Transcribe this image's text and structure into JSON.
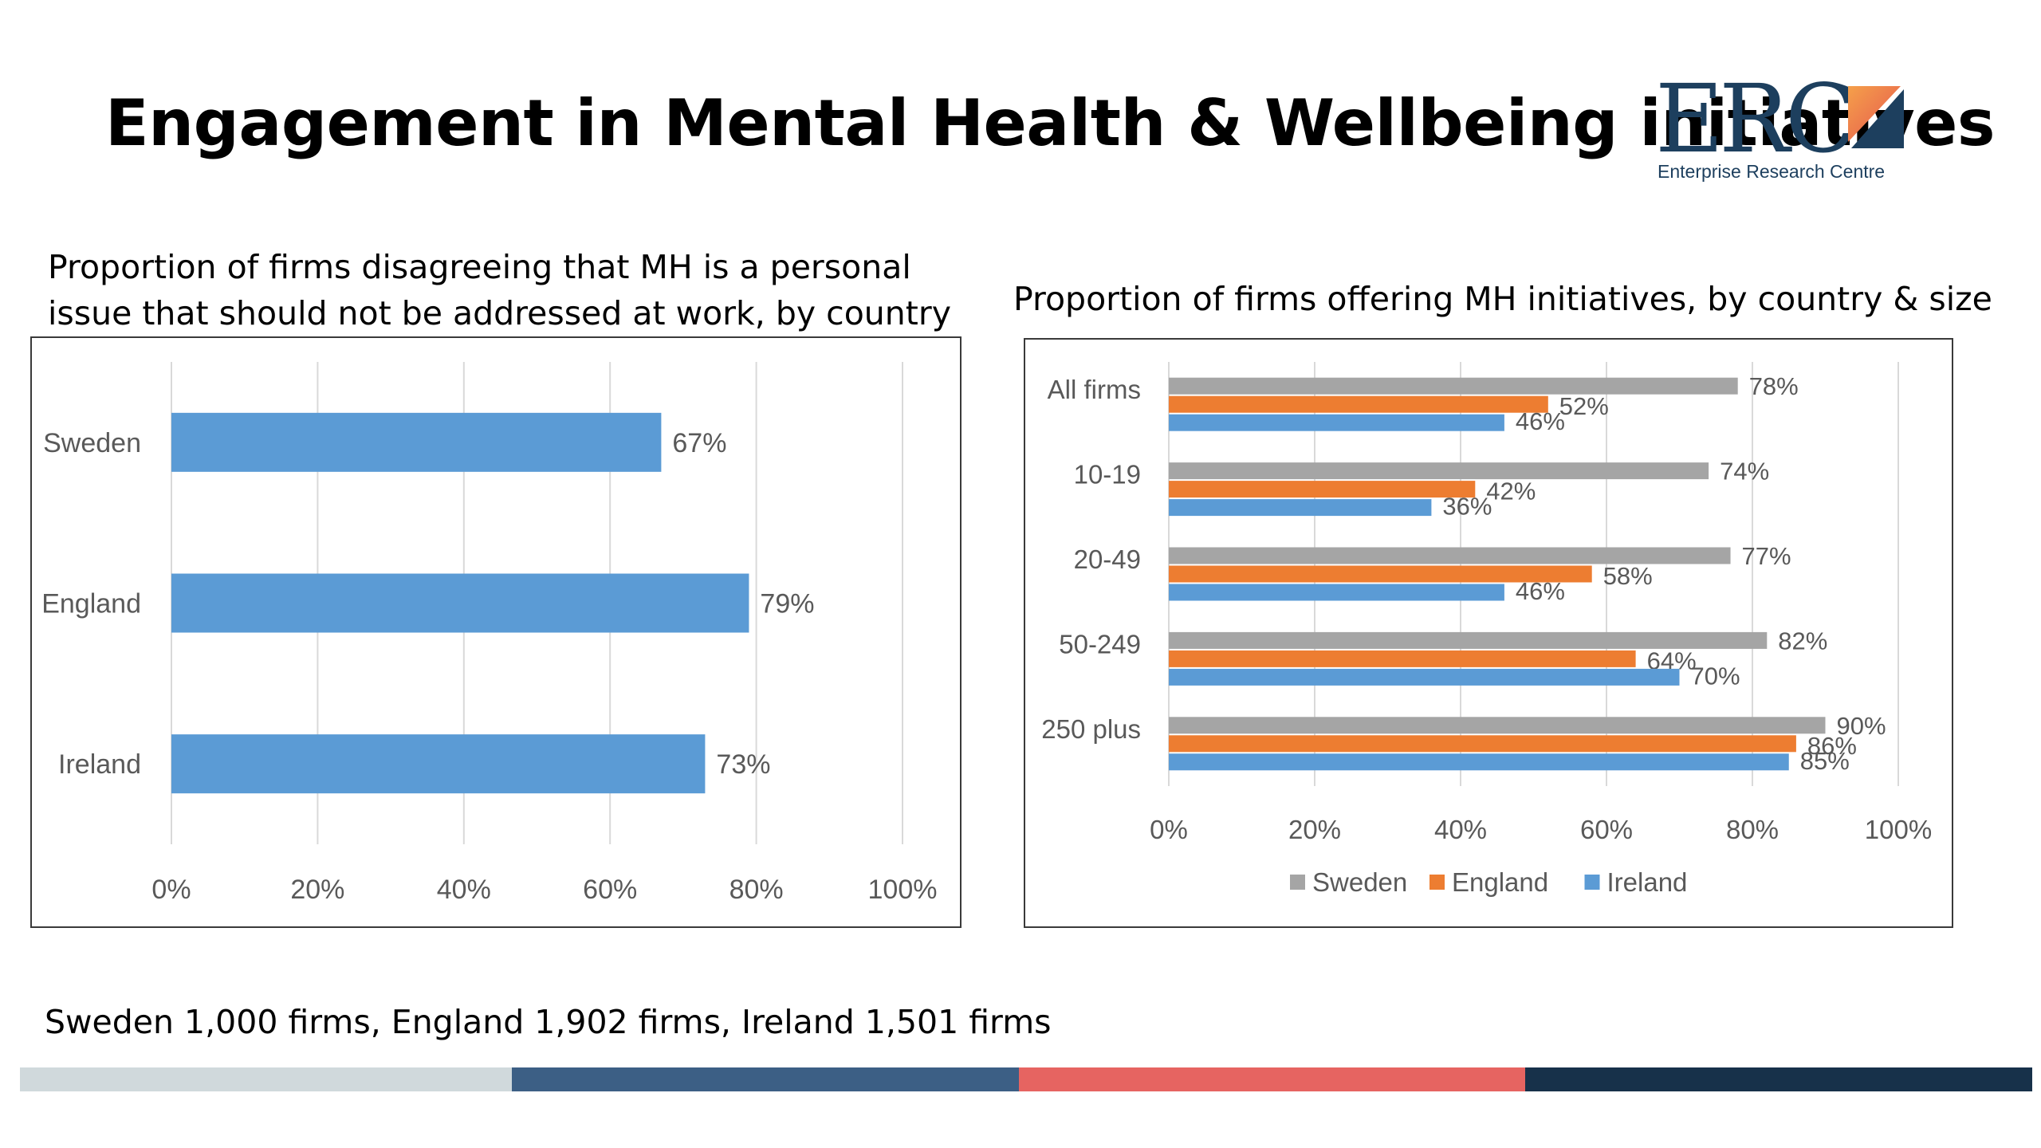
{
  "slide": {
    "title": "Engagement in Mental Health & Wellbeing initiatives",
    "footnote": "Sweden 1,000 firms, England 1,902 firms, Ireland 1,501 firms"
  },
  "logo": {
    "text": "ERC",
    "subtitle": "Enterprise Research Centre",
    "colors": {
      "navy": "#1d3f5e",
      "orange": "#f08a4b",
      "red": "#e5544f"
    }
  },
  "footer_colors": [
    "#d0d9dc",
    "#3c5f85",
    "#e66461",
    "#17314a"
  ],
  "chart_data": [
    {
      "type": "bar",
      "orientation": "horizontal",
      "title_lines": [
        "Proportion of firms disagreeing that MH is a personal",
        "issue that should not be addressed at work, by country"
      ],
      "categories": [
        "Sweden",
        "England",
        "Ireland"
      ],
      "values": [
        67,
        79,
        73
      ],
      "data_labels": [
        "67%",
        "79%",
        "73%"
      ],
      "xlim": [
        0,
        100
      ],
      "xticks": [
        "0%",
        "20%",
        "40%",
        "60%",
        "80%",
        "100%"
      ],
      "grid": true,
      "color": "#5b9bd5"
    },
    {
      "type": "bar",
      "orientation": "horizontal",
      "title": "Proportion of firms offering MH initiatives, by country & size",
      "categories": [
        "All firms",
        "10-19",
        "20-49",
        "50-249",
        "250 plus"
      ],
      "series": [
        {
          "name": "Sweden",
          "color": "#a5a5a5",
          "values": [
            78,
            74,
            77,
            82,
            90
          ]
        },
        {
          "name": "England",
          "color": "#ed7d31",
          "values": [
            52,
            42,
            58,
            64,
            86
          ]
        },
        {
          "name": "Ireland",
          "color": "#5b9bd5",
          "values": [
            46,
            36,
            46,
            70,
            85
          ]
        }
      ],
      "xlim": [
        0,
        100
      ],
      "xticks": [
        "0%",
        "20%",
        "40%",
        "60%",
        "80%",
        "100%"
      ],
      "grid": true,
      "legend": "bottom"
    }
  ]
}
